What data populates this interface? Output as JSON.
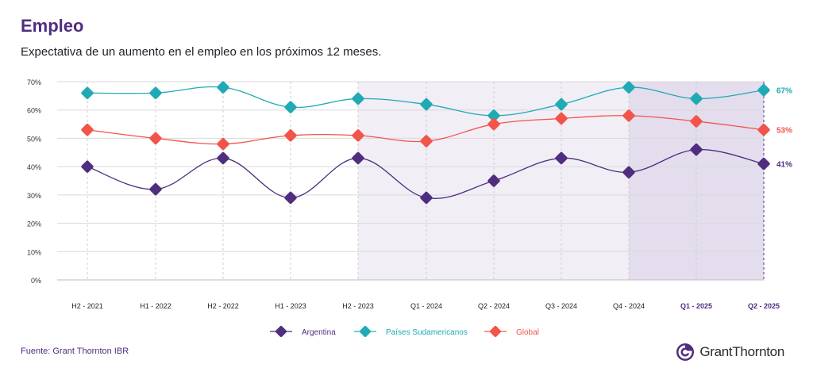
{
  "header": {
    "title": "Empleo",
    "subtitle": "Expectativa de un aumento en el empleo en los próximos 12 meses."
  },
  "footer": {
    "source": "Fuente: Grant Thornton IBR",
    "brand": "GrantThornton"
  },
  "colors": {
    "title": "#4f2d7f",
    "argentina": "#4f2d7f",
    "sudamerica": "#20aab4",
    "global": "#f2544a",
    "shade_light": "#f1eef6",
    "shade_dark": "#e3ddee"
  },
  "chart_data": {
    "type": "line",
    "title": "Expectativa de un aumento en el empleo en los próximos 12 meses.",
    "categories": [
      "H2 - 2021",
      "H1 - 2022",
      "H2 - 2022",
      "H1 - 2023",
      "H2 - 2023",
      "Q1 - 2024",
      "Q2 - 2024",
      "Q3 - 2024",
      "Q4 - 2024",
      "Q1 - 2025",
      "Q2 - 2025"
    ],
    "bold_categories": [
      "Q1 - 2025",
      "Q2 - 2025"
    ],
    "y_ticks": [
      "0%",
      "10%",
      "20%",
      "30%",
      "40%",
      "50%",
      "60%",
      "70%"
    ],
    "ylim": [
      0,
      70
    ],
    "shaded_ranges": [
      {
        "from": "H2 - 2023",
        "to": "Q2 - 2025",
        "shade": "light"
      },
      {
        "from": "Q4 - 2024",
        "to": "Q2 - 2025",
        "shade": "dark"
      }
    ],
    "legend_position": "bottom",
    "series": [
      {
        "name": "Argentina",
        "color": "#4f2d7f",
        "values": [
          40,
          32,
          43,
          29,
          43,
          29,
          35,
          43,
          38,
          46,
          41
        ],
        "end_label": "41%"
      },
      {
        "name": "Países Sudamericanos",
        "color": "#20aab4",
        "values": [
          66,
          66,
          68,
          61,
          64,
          62,
          58,
          62,
          68,
          64,
          67
        ],
        "end_label": "67%"
      },
      {
        "name": "Global",
        "color": "#f2544a",
        "values": [
          53,
          50,
          48,
          51,
          51,
          49,
          55,
          57,
          58,
          56,
          53
        ],
        "end_label": "53%"
      }
    ]
  }
}
